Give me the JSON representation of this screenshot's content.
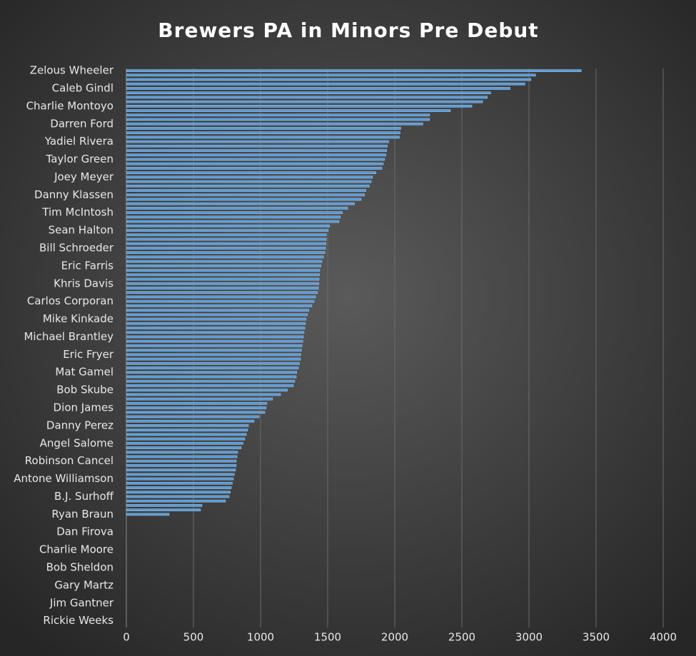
{
  "chart_data": {
    "type": "hbar",
    "title": "Brewers PA in Minors Pre Debut",
    "categories": [
      "Zelous Wheeler",
      null,
      null,
      null,
      "Caleb Gindl",
      null,
      null,
      null,
      "Charlie Montoyo",
      null,
      null,
      null,
      "Darren Ford",
      null,
      null,
      null,
      "Yadiel Rivera",
      null,
      null,
      null,
      "Taylor Green",
      null,
      null,
      null,
      "Joey Meyer",
      null,
      null,
      null,
      "Danny Klassen",
      null,
      null,
      null,
      "Tim McIntosh",
      null,
      null,
      null,
      "Sean Halton",
      null,
      null,
      null,
      "Bill Schroeder",
      null,
      null,
      null,
      "Eric Farris",
      null,
      null,
      null,
      "Khris Davis",
      null,
      null,
      null,
      "Carlos Corporan",
      null,
      null,
      null,
      "Mike Kinkade",
      null,
      null,
      null,
      "Michael Brantley",
      null,
      null,
      null,
      "Eric Fryer",
      null,
      null,
      null,
      "Mat Gamel",
      null,
      null,
      null,
      "Bob Skube",
      null,
      null,
      null,
      "Dion James",
      null,
      null,
      null,
      "Danny Perez",
      null,
      null,
      null,
      "Angel Salome",
      null,
      null,
      null,
      "Robinson Cancel",
      null,
      null,
      null,
      "Antone Williamson",
      null,
      null,
      null,
      "B.J. Surhoff",
      null,
      null,
      null,
      "Ryan Braun",
      null,
      null,
      null,
      "Dan Firova",
      null,
      null,
      null,
      "Charlie Moore",
      null,
      null,
      null,
      "Bob Sheldon",
      null,
      null,
      null,
      "Gary Martz",
      null,
      null,
      null,
      "Jim Gantner",
      null,
      null,
      null,
      "Rickie Weeks",
      null
    ],
    "values": [
      3390,
      3050,
      3015,
      2970,
      2860,
      2715,
      2690,
      2655,
      2575,
      2415,
      2260,
      2260,
      2210,
      2045,
      2040,
      2035,
      1955,
      1945,
      1940,
      1935,
      1925,
      1915,
      1905,
      1860,
      1835,
      1825,
      1810,
      1785,
      1775,
      1750,
      1700,
      1650,
      1610,
      1595,
      1585,
      1515,
      1505,
      1490,
      1490,
      1488,
      1485,
      1480,
      1470,
      1458,
      1450,
      1441,
      1440,
      1436,
      1435,
      1431,
      1425,
      1410,
      1400,
      1383,
      1360,
      1350,
      1340,
      1335,
      1330,
      1324,
      1320,
      1315,
      1310,
      1305,
      1300,
      1298,
      1290,
      1282,
      1270,
      1266,
      1255,
      1245,
      1200,
      1149,
      1090,
      1048,
      1042,
      1032,
      990,
      952,
      910,
      904,
      894,
      883,
      870,
      856,
      830,
      825,
      819,
      819,
      814,
      805,
      798,
      790,
      782,
      775,
      766,
      739,
      564,
      553,
      319,
      0,
      0,
      0,
      0,
      0,
      0,
      0,
      0,
      0,
      0,
      0,
      0,
      0,
      0,
      0,
      0,
      0,
      0,
      0,
      0,
      0,
      0,
      0,
      0,
      0
    ],
    "color": "#5b9bd5",
    "xlim": [
      0,
      4000
    ],
    "xticks": [
      0,
      500,
      1000,
      1500,
      2000,
      2500,
      3000,
      3500,
      4000
    ],
    "grid": true
  }
}
